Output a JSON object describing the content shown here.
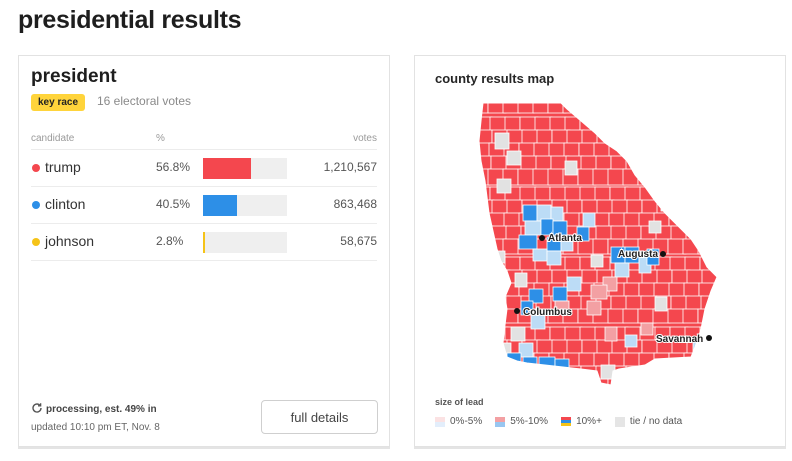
{
  "page_title": "presidential results",
  "president": {
    "title": "president",
    "badge": "key race",
    "electoral_votes": "16 electoral votes",
    "headers": {
      "candidate": "candidate",
      "pct": "%",
      "votes": "votes"
    },
    "candidates": [
      {
        "name": "trump",
        "pct": "56.8%",
        "share": 56.8,
        "votes": "1,210,567",
        "color": "#f4474e"
      },
      {
        "name": "clinton",
        "pct": "40.5%",
        "share": 40.5,
        "votes": "863,468",
        "color": "#2d8fe7"
      },
      {
        "name": "johnson",
        "pct": "2.8%",
        "share": 2.8,
        "votes": "58,675",
        "color": "#f5c318"
      }
    ],
    "processing": "processing, est. 49% in",
    "updated": "updated 10:10 pm ET, Nov. 8",
    "full_details": "full details",
    "icons": {
      "processing": "refresh-icon"
    }
  },
  "map": {
    "title": "county results map",
    "cities": [
      "Atlanta",
      "Augusta",
      "Columbus",
      "Savannah"
    ],
    "legend_title": "size of lead",
    "legend": [
      {
        "label": "0%-5%",
        "colors": [
          "#fbe2e3",
          "#e3eefb"
        ]
      },
      {
        "label": "5%-10%",
        "colors": [
          "#f3a0a3",
          "#98c6f0"
        ]
      },
      {
        "label": "10%+",
        "colors": [
          "#f4474e",
          "#2d8fe7",
          "#f5c318"
        ]
      },
      {
        "label": "tie / no data",
        "colors": [
          "#e5e5e5"
        ]
      }
    ],
    "colors": {
      "rep_strong": "#f4474e",
      "rep_lean": "#f3a0a3",
      "dem_strong": "#2d8fe7",
      "dem_lean": "#bcdcf6",
      "tie": "#e2e2e2",
      "border": "#ffffff"
    }
  }
}
